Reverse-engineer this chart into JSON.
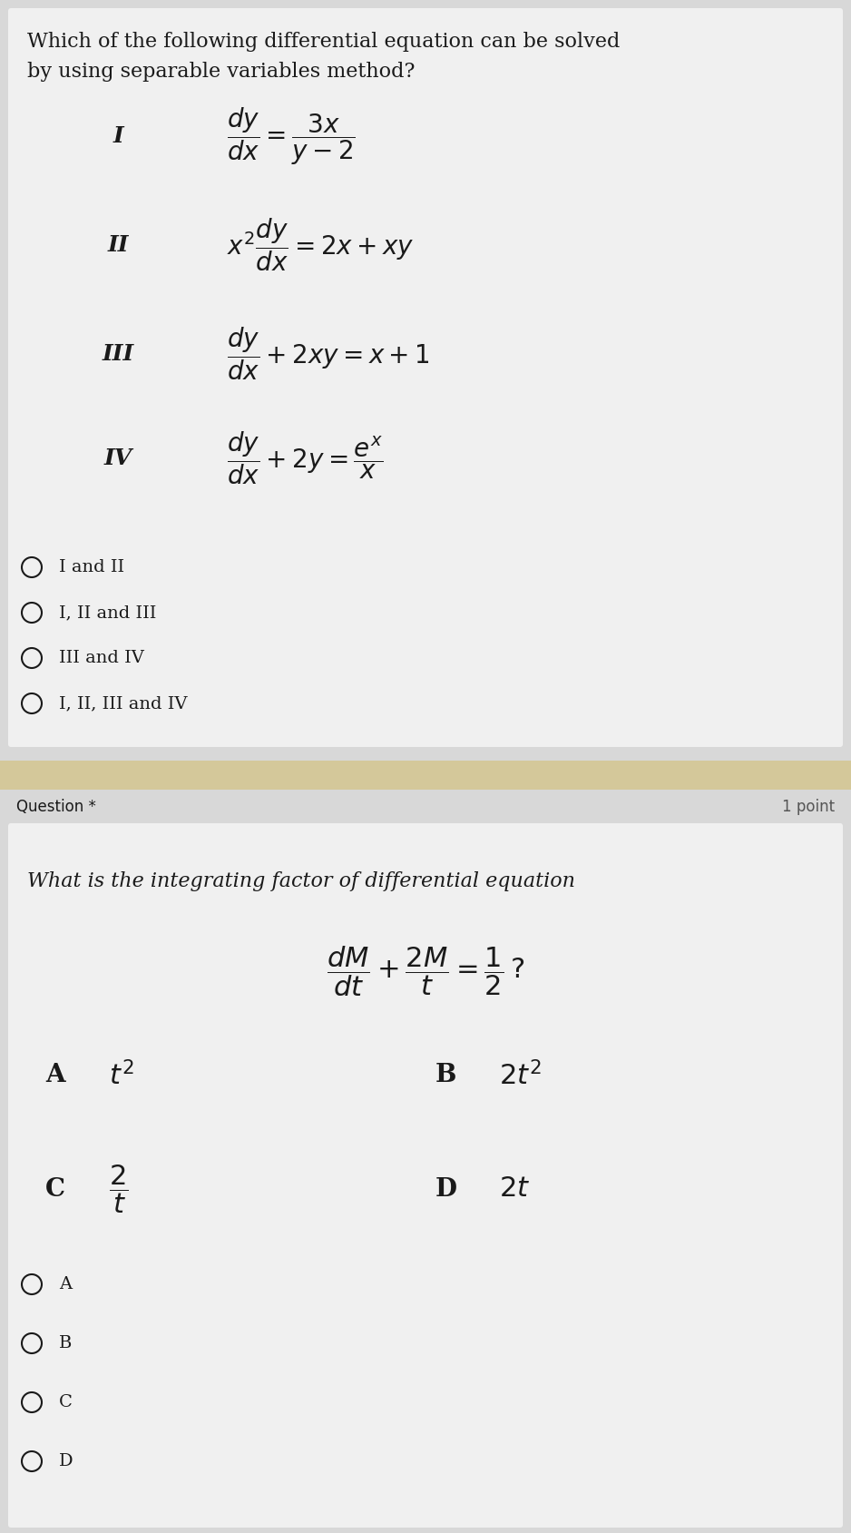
{
  "bg_color": "#d8d8d8",
  "card_color": "#f0f0f0",
  "divider_color": "#d4c89a",
  "text_color": "#1a1a1a",
  "q1_title_line1": "Which of the following differential equation can be solved",
  "q1_title_line2": "by using separable variables method?",
  "q1_equations": [
    {
      "label": "I",
      "eq": "$\\dfrac{dy}{dx} = \\dfrac{3x}{y-2}$"
    },
    {
      "label": "II",
      "eq": "$x^2\\dfrac{dy}{dx} = 2x + xy$"
    },
    {
      "label": "III",
      "eq": "$\\dfrac{dy}{dx} + 2xy = x+1$"
    },
    {
      "label": "IV",
      "eq": "$\\dfrac{dy}{dx} + 2y = \\dfrac{e^x}{x}$"
    }
  ],
  "q1_options": [
    "I and II",
    "I, II and III",
    "III and IV",
    "I, II, III and IV"
  ],
  "question_label": "Question *",
  "points_label": "1 point",
  "q2_title": "What is the integrating factor of differential equation",
  "q2_eq": "$\\dfrac{dM}{dt} + \\dfrac{2M}{t} = \\dfrac{1}{2}\\,?$",
  "q2_options_grid": [
    {
      "label": "A",
      "val": "$t^2$"
    },
    {
      "label": "B",
      "val": "$2t^2$"
    },
    {
      "label": "C",
      "val": "$\\dfrac{2}{t}$"
    },
    {
      "label": "D",
      "val": "$2t$"
    }
  ],
  "q2_radio_options": [
    "A",
    "B",
    "C",
    "D"
  ],
  "title_fontsize": 16,
  "eq_fontsize": 16,
  "option_fontsize": 14,
  "small_fontsize": 12,
  "label_fontsize": 16,
  "grid_label_fontsize": 18,
  "grid_val_fontsize": 18
}
